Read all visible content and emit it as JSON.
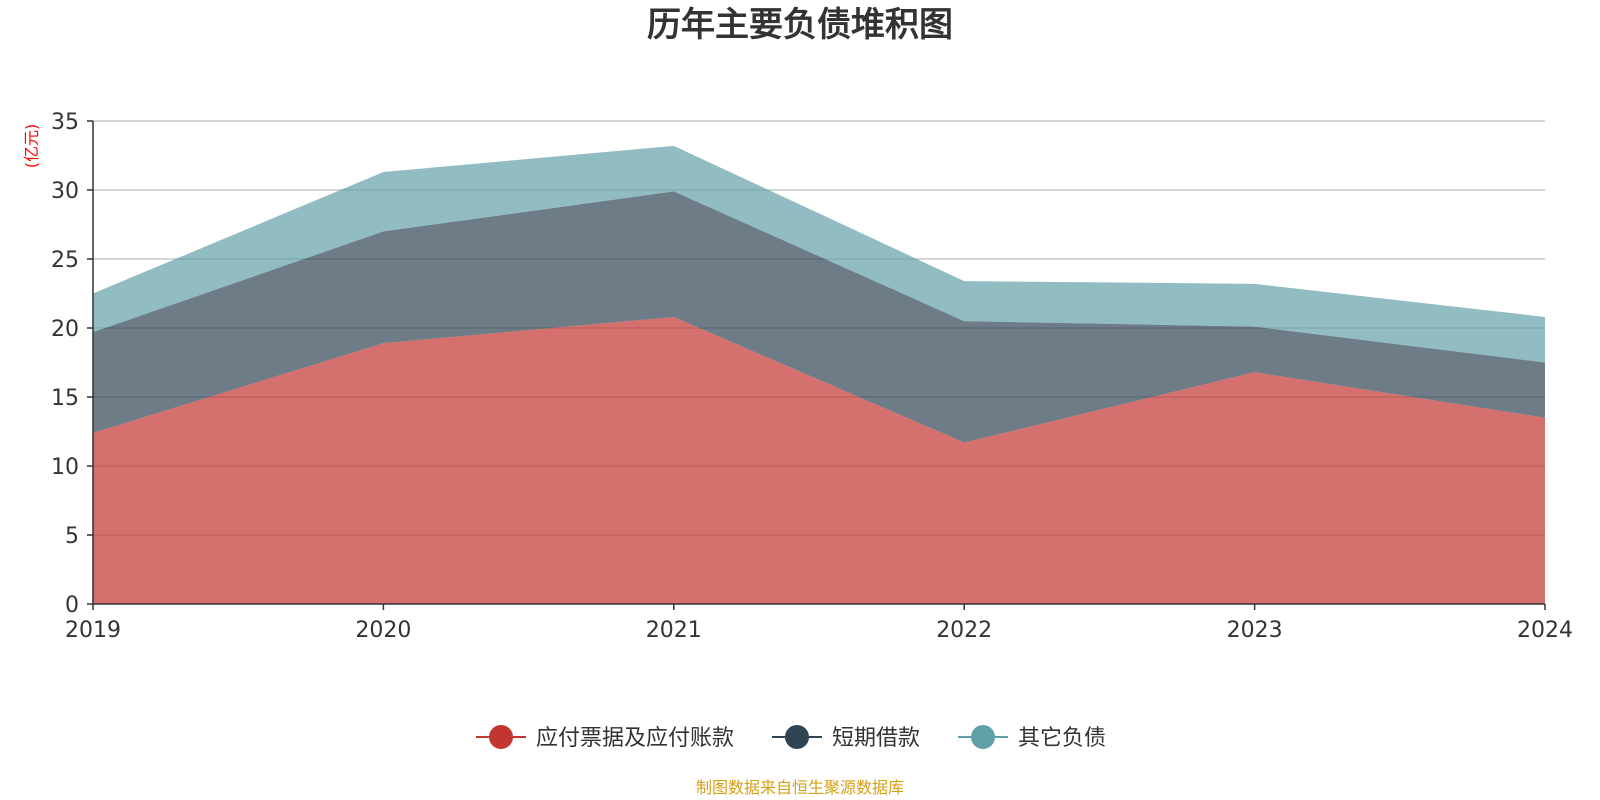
{
  "chart_data": {
    "type": "area",
    "stacked": true,
    "title": "历年主要负债堆积图",
    "unit_label": "(亿元)",
    "x": [
      "2019",
      "2020",
      "2021",
      "2022",
      "2023",
      "2024"
    ],
    "ylim": [
      0,
      35
    ],
    "yticks": [
      0,
      5,
      10,
      15,
      20,
      25,
      30,
      35
    ],
    "grid": true,
    "legend_position": "bottom-center",
    "series": [
      {
        "name": "应付票据及应付账款",
        "values": [
          12.4,
          18.9,
          20.8,
          11.7,
          16.8,
          13.5
        ],
        "color": "#c23531"
      },
      {
        "name": "短期借款",
        "values": [
          7.3,
          8.1,
          9.1,
          8.8,
          3.3,
          4.0
        ],
        "color": "#2f4554"
      },
      {
        "name": "其它负债",
        "values": [
          2.8,
          4.3,
          3.3,
          2.9,
          3.1,
          3.3
        ],
        "color": "#61a0a8"
      }
    ],
    "source": "制图数据来自恒生聚源数据库",
    "colors": {
      "unit": "#ff0000",
      "source": "#d4a017",
      "axis": "#333333",
      "grid": "#c8c8c8"
    }
  }
}
